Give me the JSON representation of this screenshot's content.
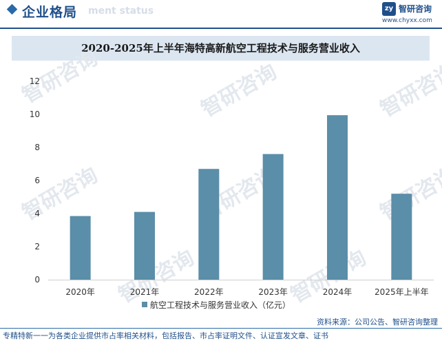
{
  "header": {
    "section_title": "企业格局",
    "section_subtitle": "ment status",
    "logo_name": "智研咨询",
    "logo_url": "www.chyxx.com",
    "logo_mark": "zy"
  },
  "watermark": "智研咨询",
  "colors": {
    "bar": "#5b8ea8",
    "accent": "#1f4f8a",
    "title_band": "#dbe6f1"
  },
  "chart_data": {
    "type": "bar",
    "title": "2020-2025年上半年海特高新航空工程技术与服务营业收入",
    "categories": [
      "2020年",
      "2021年",
      "2022年",
      "2023年",
      "2024年",
      "2025年上半年"
    ],
    "series": [
      {
        "name": "航空工程技术与服务营业收入（亿元）",
        "values": [
          3.85,
          4.1,
          6.7,
          7.6,
          9.95,
          5.2
        ]
      }
    ],
    "ylim": [
      0,
      12
    ],
    "yticks": [
      "0",
      "2",
      "4",
      "6",
      "8",
      "10",
      "12"
    ],
    "grid": false,
    "legend": "bottom"
  },
  "footer": {
    "source": "资料来源：公司公告、智研咨询整理",
    "tagline": "专精特新一一为各类企业提供市占率相关材料，包括报告、市占率证明文件、认证宣发文章、证书"
  }
}
